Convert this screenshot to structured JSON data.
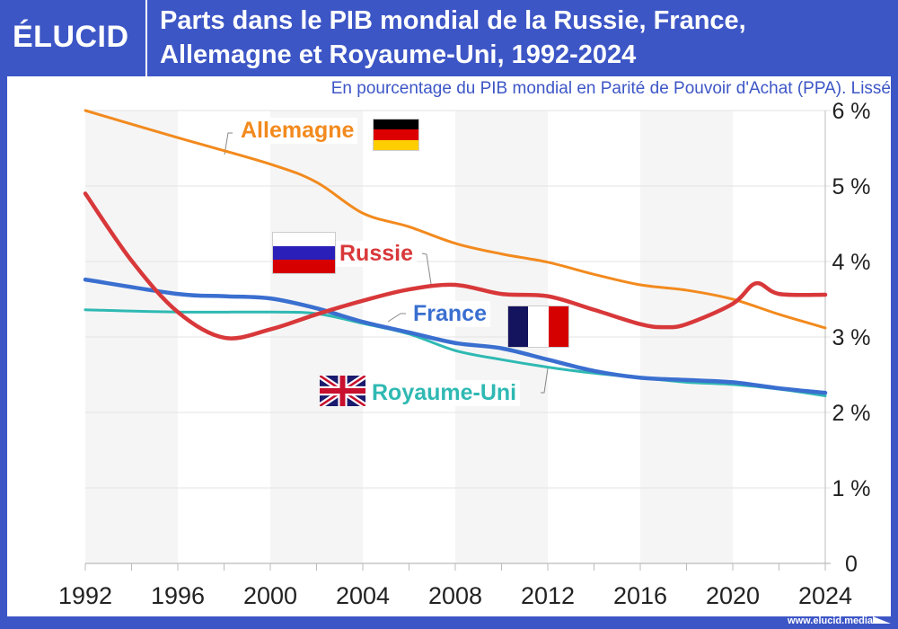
{
  "header": {
    "logo": "ÉLUCID",
    "title_line1": "Parts dans le PIB mondial de la Russie, France,",
    "title_line2": "Allemagne et Royaume-Uni, 1992-2024",
    "subtitle": "En pourcentage du PIB mondial en Parité de Pouvoir d'Achat (PPA). Lissé"
  },
  "footer": {
    "url": "www.elucid.media"
  },
  "chart_data": {
    "type": "line",
    "title": "Parts dans le PIB mondial de la Russie, France, Allemagne et Royaume-Uni, 1992-2024",
    "subtitle": "En pourcentage du PIB mondial en Parité de Pouvoir d'Achat (PPA). Lissé",
    "xlim": [
      1992,
      2024
    ],
    "ylim": [
      0,
      6
    ],
    "x_ticks": [
      "1992",
      "1996",
      "2000",
      "2004",
      "2008",
      "2012",
      "2016",
      "2020",
      "2024"
    ],
    "y_ticks": [
      "0",
      "1 %",
      "2 %",
      "3 %",
      "4 %",
      "5 %",
      "6 %"
    ],
    "y_axis_position": "right",
    "grid": true,
    "shaded_bands": [
      [
        1992,
        1996
      ],
      [
        2000,
        2004
      ],
      [
        2008,
        2012
      ],
      [
        2016,
        2020
      ]
    ],
    "series": [
      {
        "name": "Allemagne",
        "color": "#f28a1e",
        "flag": "germany",
        "x": [
          1992,
          1996,
          2000,
          2002,
          2004,
          2006,
          2008,
          2010,
          2012,
          2014,
          2016,
          2018,
          2020,
          2022,
          2024
        ],
        "values": [
          6.0,
          5.64,
          5.29,
          5.05,
          4.64,
          4.46,
          4.24,
          4.1,
          3.99,
          3.83,
          3.69,
          3.62,
          3.5,
          3.3,
          3.12
        ]
      },
      {
        "name": "Russie",
        "color": "#d8383a",
        "flag": "russia",
        "x": [
          1992,
          1994,
          1996,
          1998,
          2000,
          2002,
          2004,
          2006,
          2008,
          2010,
          2012,
          2014,
          2016,
          2017,
          2018,
          2020,
          2021,
          2022,
          2024
        ],
        "values": [
          4.9,
          4.01,
          3.33,
          2.99,
          3.1,
          3.3,
          3.48,
          3.63,
          3.69,
          3.57,
          3.54,
          3.36,
          3.17,
          3.13,
          3.17,
          3.44,
          3.71,
          3.57,
          3.56
        ]
      },
      {
        "name": "France",
        "color": "#3a6fd0",
        "flag": "france",
        "x": [
          1992,
          1996,
          1998,
          2000,
          2002,
          2004,
          2006,
          2008,
          2010,
          2012,
          2014,
          2016,
          2018,
          2020,
          2022,
          2024
        ],
        "values": [
          3.76,
          3.57,
          3.54,
          3.51,
          3.38,
          3.2,
          3.06,
          2.92,
          2.85,
          2.7,
          2.55,
          2.46,
          2.43,
          2.4,
          2.32,
          2.26
        ]
      },
      {
        "name": "Royaume-Uni",
        "color": "#2fb9b3",
        "flag": "united-kingdom",
        "x": [
          1992,
          1996,
          2000,
          2002,
          2004,
          2006,
          2008,
          2010,
          2012,
          2014,
          2016,
          2018,
          2020,
          2022,
          2024
        ],
        "values": [
          3.36,
          3.33,
          3.33,
          3.31,
          3.18,
          3.04,
          2.82,
          2.7,
          2.6,
          2.52,
          2.46,
          2.4,
          2.37,
          2.31,
          2.22
        ]
      }
    ]
  }
}
